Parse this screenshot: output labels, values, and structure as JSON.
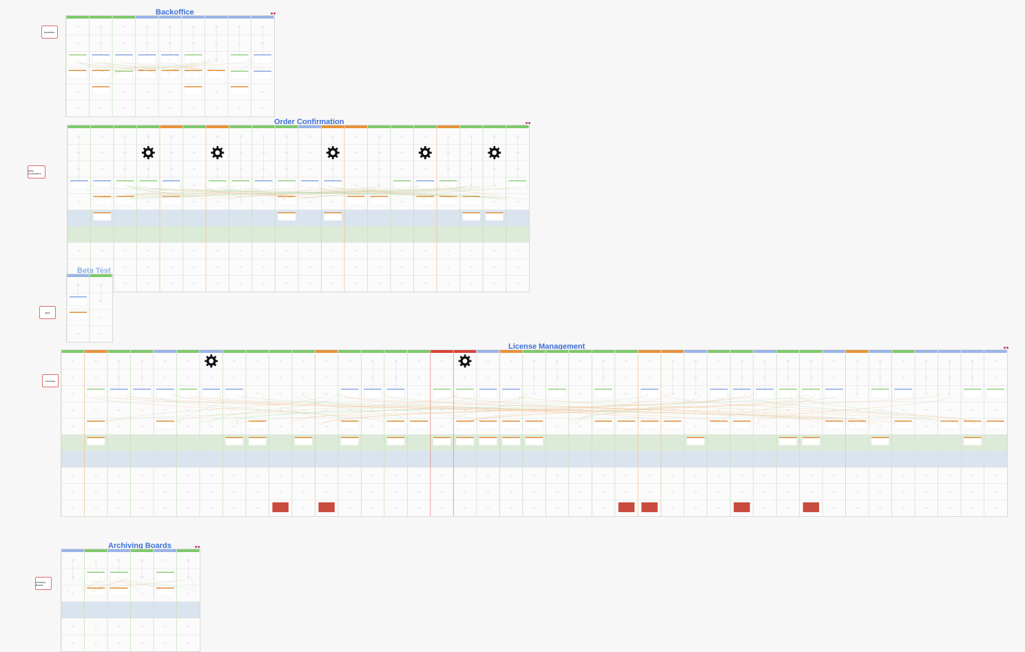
{
  "boards": [
    {
      "id": "backoffice",
      "title": "Backoffice",
      "side_label": "Backoffice",
      "columns": 9,
      "rows": 6,
      "gears": 0,
      "faded": false
    },
    {
      "id": "order",
      "title": "Order Confirmation",
      "side_label": "Order Confirmation",
      "columns": 20,
      "rows": 10,
      "gears": 5,
      "faded": false
    },
    {
      "id": "beta",
      "title": "Beta Test",
      "side_label": "Beta",
      "columns": 2,
      "rows": 4,
      "gears": 0,
      "faded": true
    },
    {
      "id": "license",
      "title": "License Management",
      "side_label": "Licensing",
      "columns": 41,
      "rows": 10,
      "gears": 2,
      "faded": false
    },
    {
      "id": "archiving",
      "title": "Archiving Boards",
      "side_label": "Archiving Boards",
      "columns": 6,
      "rows": 6,
      "gears": 0,
      "faded": false
    }
  ],
  "colors": {
    "title": "#3d6fd6",
    "header_green": "#7ec96b",
    "header_blue": "#9ab4e8",
    "header_orange": "#e8923a",
    "header_red": "#d9413a",
    "card_blue": "#6f95e0",
    "card_orange": "#e0862a",
    "band_blue": "#d9e4ef",
    "band_green": "#dcebd8",
    "red_block": "#c94a3e",
    "side_border": "#e06a6a"
  },
  "icons": [
    "gear-icon",
    "more-dots-icon"
  ]
}
